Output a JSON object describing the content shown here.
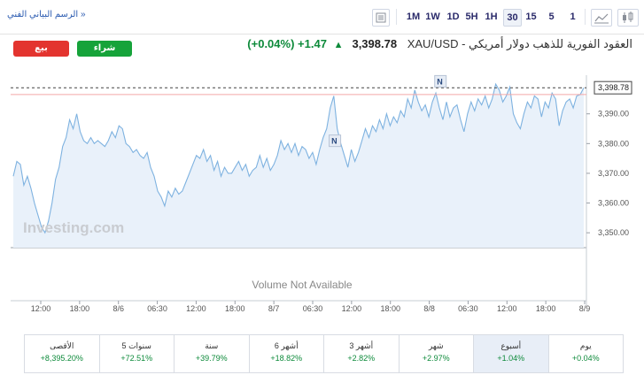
{
  "toolbar": {
    "technical_chart_link": "الرسم البياني الفني »",
    "timeframes": [
      "1M",
      "1W",
      "1D",
      "5H",
      "1H",
      "30",
      "15",
      "5",
      "1"
    ],
    "active_timeframe": "30"
  },
  "trade": {
    "sell_label": "بيع",
    "buy_label": "شراء"
  },
  "instrument": {
    "name": "XAU/USD - العقود الفورية للذهب دولار أمريكي",
    "price": "3,398.78",
    "change": "+1.47",
    "change_pct": "(+0.04%)",
    "direction_icon": "up-arrow-icon"
  },
  "chart_data": {
    "type": "area",
    "title": "",
    "xlabel": "",
    "ylabel": "",
    "ylim": [
      3345,
      3403
    ],
    "yticks": [
      "3,350.00",
      "3,360.00",
      "3,370.00",
      "3,380.00",
      "3,390.00"
    ],
    "last_price_label": "3,398.78",
    "last_price": 3398.78,
    "reference_line": 3396.5,
    "x_labels": [
      "12:00",
      "18:00",
      "8/6",
      "06:30",
      "12:00",
      "18:00",
      "8/7",
      "06:30",
      "12:00",
      "18:00",
      "8/8",
      "06:30",
      "12:00",
      "18:00",
      "8/9"
    ],
    "news_markers": [
      {
        "label": "N",
        "x": 0.563,
        "y": 3380.5
      },
      {
        "label": "N",
        "x": 0.748,
        "y": 3400.5
      }
    ],
    "watermark": "Investing.com",
    "volume_text": "Volume Not Available",
    "grid": false,
    "colors": {
      "line": "#7eb2e0",
      "fill": "#e9f1fa",
      "reference": "#f4a6a6",
      "dashed": "#444444"
    },
    "series": [
      {
        "values": [
          3369,
          3374,
          3373,
          3366,
          3369,
          3365,
          3360,
          3356,
          3352,
          3350,
          3354,
          3360,
          3368,
          3372,
          3379,
          3382,
          3388,
          3385,
          3390,
          3384,
          3381,
          3380,
          3382,
          3380,
          3381,
          3380,
          3379,
          3381,
          3384,
          3382,
          3386,
          3385,
          3380,
          3379,
          3377,
          3378,
          3376,
          3375,
          3377,
          3372,
          3369,
          3364,
          3362,
          3359,
          3364,
          3362,
          3365,
          3363,
          3364,
          3367,
          3370,
          3373,
          3376,
          3375,
          3378,
          3374,
          3376,
          3371,
          3374,
          3369,
          3372,
          3370,
          3370,
          3372,
          3374,
          3371,
          3373,
          3369,
          3371,
          3372,
          3376,
          3372,
          3375,
          3371,
          3373,
          3376,
          3381,
          3378,
          3380,
          3377,
          3380,
          3376,
          3379,
          3378,
          3375,
          3377,
          3373,
          3378,
          3382,
          3385,
          3392,
          3396,
          3385,
          3380,
          3376,
          3372,
          3378,
          3374,
          3377,
          3381,
          3385,
          3382,
          3386,
          3384,
          3388,
          3385,
          3390,
          3386,
          3389,
          3387,
          3391,
          3389,
          3395,
          3392,
          3398,
          3394,
          3391,
          3393,
          3389,
          3394,
          3397,
          3392,
          3388,
          3394,
          3389,
          3392,
          3393,
          3388,
          3384,
          3390,
          3394,
          3391,
          3395,
          3393,
          3396,
          3392,
          3395,
          3400,
          3398,
          3394,
          3396,
          3399,
          3390,
          3387,
          3385,
          3390,
          3394,
          3392,
          3396,
          3395,
          3389,
          3394,
          3392,
          3397,
          3395,
          3386,
          3391,
          3394,
          3395,
          3392,
          3396,
          3396.5,
          3398.78
        ]
      }
    ]
  },
  "performance": [
    {
      "label": "الأقصى",
      "value": "+8,395.20%"
    },
    {
      "label": "5 سنوات",
      "value": "+72.51%"
    },
    {
      "label": "سنة",
      "value": "+39.79%"
    },
    {
      "label": "6 أشهر",
      "value": "+18.82%"
    },
    {
      "label": "3 أشهر",
      "value": "+2.82%"
    },
    {
      "label": "شهر",
      "value": "+2.97%"
    },
    {
      "label": "أسبوع",
      "value": "+1.04%",
      "selected": true
    },
    {
      "label": "يوم",
      "value": "+0.04%"
    }
  ]
}
